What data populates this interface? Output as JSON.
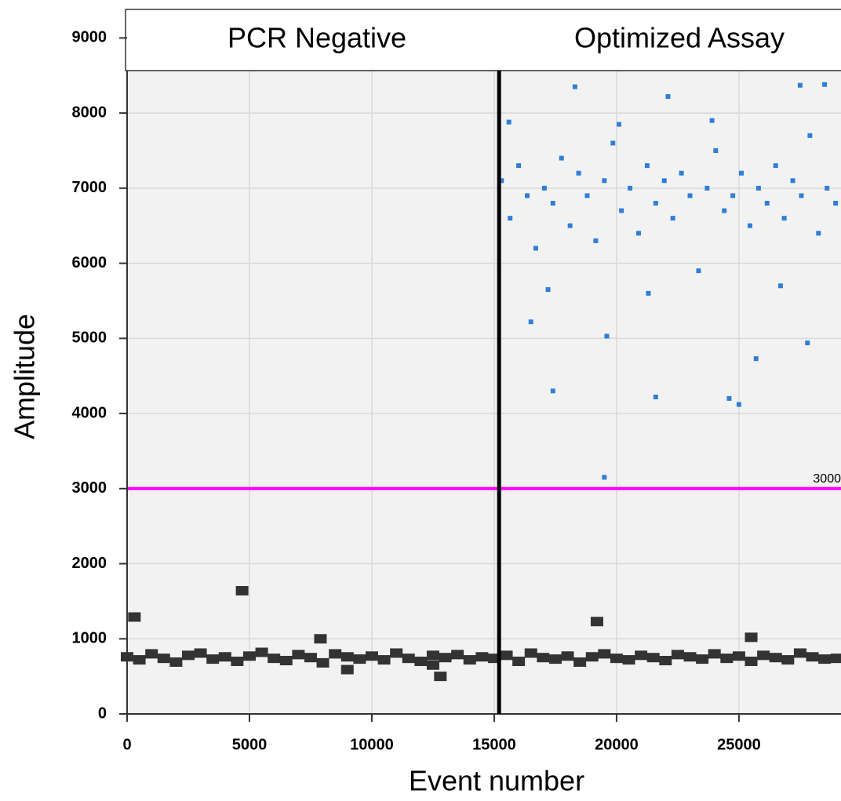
{
  "chart_data": {
    "type": "scatter",
    "panels": [
      "PCR Negative",
      "Optimized Assay"
    ],
    "x_label": "Event number",
    "y_label": "Amplitude",
    "xlim": [
      0,
      29170
    ],
    "ylim": [
      0,
      9380
    ],
    "xticks": [
      0,
      5000,
      10000,
      15000,
      20000,
      25000
    ],
    "yticks": [
      0,
      1000,
      2000,
      3000,
      4000,
      5000,
      6000,
      7000,
      8000,
      9000
    ],
    "grid": true,
    "divider_x": 15200,
    "threshold": 3000,
    "threshold_color": "#ff00ff",
    "series": [
      {
        "color": "#333333",
        "x": [
          0,
          500,
          1000,
          1500,
          2000,
          2500,
          3000,
          3500,
          4000,
          4500,
          5000,
          5500,
          6000,
          6500,
          7000,
          7500,
          8000,
          8500,
          9000,
          9500,
          10000,
          10500,
          11000,
          11500,
          12000,
          12500,
          13000,
          13500,
          14000,
          14500,
          15000,
          15500,
          16000,
          16500,
          17000,
          17500,
          18000,
          18500,
          19000,
          19500,
          20000,
          20500,
          21000,
          21500,
          22000,
          22500,
          23000,
          23500,
          24000,
          24500,
          25000,
          25500,
          26000,
          26500,
          27000,
          27500,
          28000,
          28500,
          29000,
          300,
          4700,
          7900,
          12800,
          19200,
          25500,
          9000,
          12500
        ],
        "values": [
          760,
          720,
          800,
          740,
          690,
          780,
          810,
          730,
          760,
          700,
          770,
          820,
          740,
          710,
          790,
          750,
          680,
          800,
          760,
          730,
          770,
          720,
          810,
          740,
          700,
          780,
          750,
          790,
          720,
          760,
          740,
          780,
          700,
          810,
          750,
          730,
          770,
          690,
          760,
          800,
          740,
          720,
          780,
          750,
          710,
          790,
          760,
          730,
          800,
          740,
          770,
          700,
          780,
          750,
          720,
          810,
          760,
          730,
          740,
          1290,
          1640,
          1000,
          500,
          1230,
          1020,
          590,
          650
        ]
      },
      {
        "color": "#2f7fd8",
        "x": [
          15300,
          15650,
          16000,
          16350,
          16700,
          17050,
          17400,
          17750,
          18100,
          18450,
          18800,
          19150,
          19500,
          19850,
          20200,
          20550,
          20900,
          21250,
          21600,
          21950,
          22300,
          22650,
          23000,
          23350,
          23700,
          24050,
          24400,
          24750,
          25100,
          25450,
          25800,
          26150,
          26500,
          26850,
          27200,
          27550,
          27900,
          28250,
          28600,
          28950,
          17400,
          21600,
          24600,
          25000,
          19500,
          25700,
          16500,
          19600,
          27800,
          18300,
          22100,
          27500,
          28500,
          15600,
          20100,
          23900,
          17200,
          21300,
          26700
        ],
        "values": [
          7100,
          6600,
          7300,
          6900,
          6200,
          7000,
          6800,
          7400,
          6500,
          7200,
          6900,
          6300,
          7100,
          7600,
          6700,
          7000,
          6400,
          7300,
          6800,
          7100,
          6600,
          7200,
          6900,
          5900,
          7000,
          7500,
          6700,
          6900,
          7200,
          6500,
          7000,
          6800,
          7300,
          6600,
          7100,
          6900,
          7700,
          6400,
          7000,
          6800,
          4300,
          4220,
          4200,
          4120,
          3150,
          4730,
          5220,
          5030,
          4940,
          8350,
          8220,
          8370,
          8380,
          7880,
          7850,
          7900,
          5650,
          5600,
          5700
        ]
      }
    ]
  }
}
